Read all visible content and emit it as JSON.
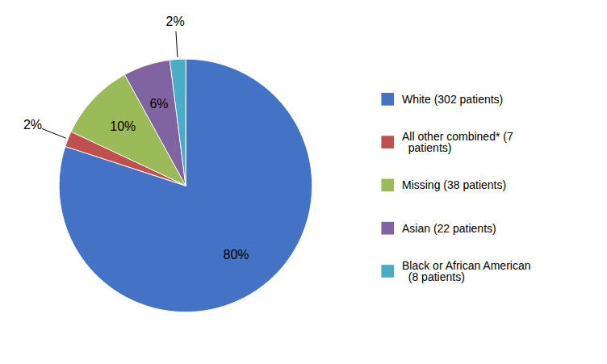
{
  "chart_data": {
    "type": "pie",
    "categories": [
      "White (302 patients)",
      "All other combined* (7\n  patients)",
      "Missing (38 patients)",
      "Asian (22 patients)",
      "Black or African American\n  (8 patients)"
    ],
    "values": [
      80,
      2,
      10,
      6,
      2
    ],
    "value_labels": [
      "80%",
      "2%",
      "10%",
      "6%",
      "2%"
    ],
    "colors": [
      "#4472C4",
      "#C0504D",
      "#9BBB59",
      "#8064A2",
      "#4BACC6"
    ],
    "data_labels": true,
    "legend": "right"
  }
}
